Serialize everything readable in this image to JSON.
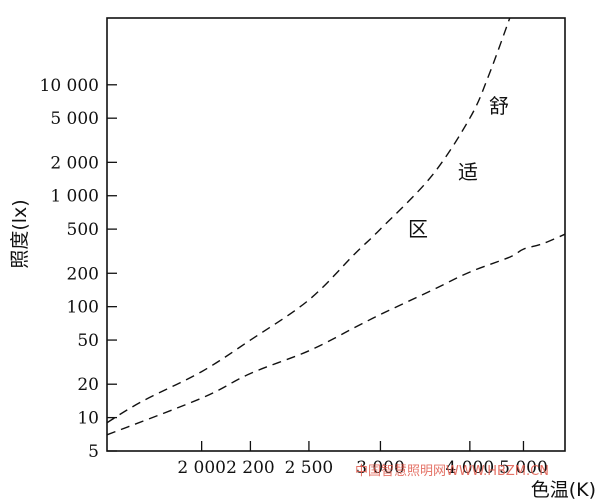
{
  "chart_data": {
    "type": "line",
    "xlabel": "色温(K)",
    "ylabel": "照度(lx)",
    "x_scale": "reciprocal",
    "y_scale": "log",
    "xlim": [
      1700,
      6200
    ],
    "ylim": [
      5,
      40000
    ],
    "x_ticks": [
      2000,
      2200,
      2500,
      3000,
      4000,
      5000
    ],
    "x_tick_labels": [
      "2 000",
      "2 200",
      "2 500",
      "3 000",
      "4 000",
      "5 000"
    ],
    "y_ticks": [
      10000,
      5000,
      2000,
      1000,
      500,
      200,
      100,
      50,
      20,
      10,
      5
    ],
    "y_tick_labels": [
      "10 000",
      "5 000",
      "2 000",
      "1 000",
      "500",
      "200",
      "100",
      "50",
      "20",
      "10",
      "5"
    ],
    "grid": false,
    "legend": "none",
    "line_style": "dashed",
    "line_color": "#111111",
    "series": [
      {
        "values_x": [
          1700,
          1800,
          2000,
          2200,
          2500,
          2800,
          3000,
          3500,
          4000,
          4300,
          4700
        ],
        "values_y": [
          9,
          14,
          26,
          50,
          115,
          300,
          500,
          1500,
          5000,
          12000,
          40000
        ]
      },
      {
        "values_x": [
          1700,
          2000,
          2200,
          2500,
          2800,
          3000,
          3500,
          4000,
          4700,
          5000,
          5500,
          6200
        ],
        "values_y": [
          7,
          15,
          25,
          40,
          65,
          85,
          140,
          205,
          280,
          330,
          370,
          450
        ]
      }
    ],
    "annotations": [
      "舒",
      "适",
      "区"
    ]
  },
  "watermark": "中国智慧照明网WWW.HBZM.CN"
}
